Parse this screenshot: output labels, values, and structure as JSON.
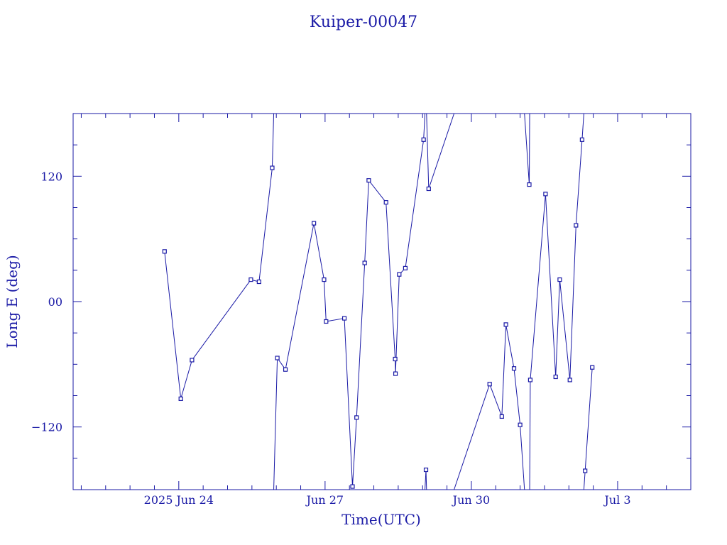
{
  "chart_data": {
    "type": "line",
    "title": "Kuiper-00047",
    "xlabel": "Time(UTC)",
    "ylabel": "Long E (deg)",
    "ylim": [
      -180,
      180
    ],
    "xlim": [
      "2025-06-21 20:00",
      "2025-07-04 12:00"
    ],
    "y_wraps_at": 180,
    "grid": false,
    "color": "#1a1aa6",
    "x_ticks": [
      {
        "at": "2025-06-24 00:00",
        "label": "2025 Jun 24"
      },
      {
        "at": "2025-06-27 00:00",
        "label": "Jun 27"
      },
      {
        "at": "2025-06-30 00:00",
        "label": "Jun 30"
      },
      {
        "at": "2025-07-03 00:00",
        "label": "Jul  3"
      }
    ],
    "y_ticks": [
      {
        "at": -120,
        "label": "−120"
      },
      {
        "at": 0,
        "label": "00"
      },
      {
        "at": 120,
        "label": "120"
      }
    ],
    "series": [
      {
        "points": [
          [
            "2025-06-23 17:00",
            48
          ],
          [
            "2025-06-24 01:00",
            -93
          ],
          [
            "2025-06-24 06:30",
            -56
          ],
          [
            "2025-06-25 11:30",
            21
          ],
          [
            "2025-06-25 15:30",
            19
          ],
          [
            "2025-06-25 22:00",
            128
          ],
          [
            "2025-06-26 00:30",
            -54
          ],
          [
            "2025-06-26 04:30",
            -65
          ],
          [
            "2025-06-26 18:30",
            75
          ],
          [
            "2025-06-26 23:30",
            21
          ],
          [
            "2025-06-27 00:30",
            -19
          ],
          [
            "2025-06-27 09:30",
            -16
          ],
          [
            "2025-06-27 13:30",
            -177
          ],
          [
            "2025-06-27 15:30",
            -111
          ],
          [
            "2025-06-27 19:30",
            37
          ],
          [
            "2025-06-27 21:30",
            116
          ],
          [
            "2025-06-28 06:00",
            95
          ],
          [
            "2025-06-28 10:30",
            -55
          ],
          [
            "2025-06-28 10:40",
            -69
          ],
          [
            "2025-06-28 12:30",
            26
          ],
          [
            "2025-06-28 15:30",
            32
          ],
          [
            "2025-06-29 00:30",
            155
          ],
          [
            "2025-06-29 01:40",
            -161
          ],
          [
            "2025-06-29 03:00",
            108
          ],
          [
            "2025-06-30 09:00",
            -79
          ],
          [
            "2025-06-30 15:00",
            -110
          ],
          [
            "2025-06-30 17:00",
            -22
          ],
          [
            "2025-06-30 21:00",
            -64
          ],
          [
            "2025-07-01 00:00",
            -118
          ],
          [
            "2025-07-01 04:30",
            112
          ],
          [
            "2025-07-01 05:00",
            -75
          ],
          [
            "2025-07-01 12:30",
            103
          ],
          [
            "2025-07-01 17:30",
            -72
          ],
          [
            "2025-07-01 19:30",
            21
          ],
          [
            "2025-07-02 00:30",
            -75
          ],
          [
            "2025-07-02 03:30",
            73
          ],
          [
            "2025-07-02 06:30",
            155
          ],
          [
            "2025-07-02 08:00",
            -162
          ],
          [
            "2025-07-02 11:30",
            -63
          ]
        ]
      }
    ]
  }
}
